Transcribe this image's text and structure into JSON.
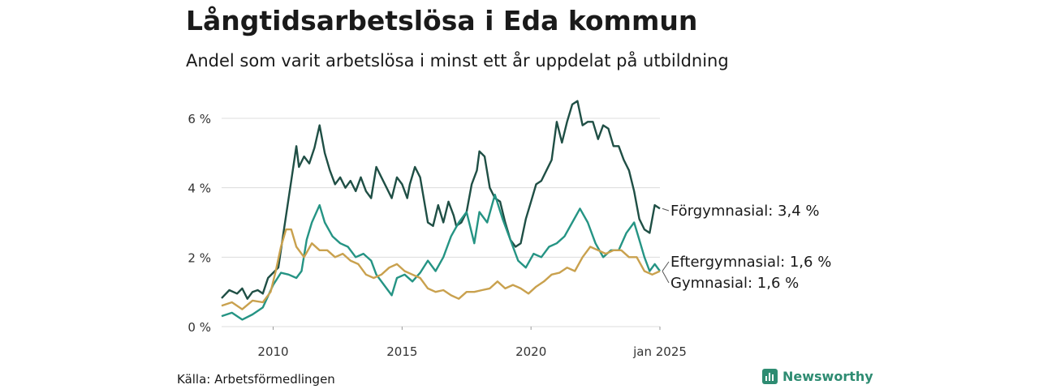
{
  "title": "Långtidsarbetslösa i Eda kommun",
  "subtitle": "Andel som varit arbetslösa i minst ett år uppdelat på utbildning",
  "source": "Källa: Arbetsförmedlingen",
  "brand": {
    "name": "Newsworthy",
    "icon": "newsworthy-logo-icon",
    "color": "#2e8c72"
  },
  "chart_data": {
    "type": "line",
    "title": "Långtidsarbetslösa i Eda kommun",
    "subtitle": "Andel som varit arbetslösa i minst ett år uppdelat på utbildning",
    "xlabel": "",
    "ylabel": "",
    "xlim": [
      2008.0,
      2025.0
    ],
    "ylim": [
      0,
      6.8
    ],
    "grid": true,
    "yticks": [
      {
        "value": 0,
        "label": "0 %"
      },
      {
        "value": 2,
        "label": "2 %"
      },
      {
        "value": 4,
        "label": "4 %"
      },
      {
        "value": 6,
        "label": "6 %"
      }
    ],
    "xticks": [
      {
        "value": 2010,
        "label": "2010"
      },
      {
        "value": 2015,
        "label": "2015"
      },
      {
        "value": 2020,
        "label": "2020"
      },
      {
        "value": 2025,
        "label": "jan 2025"
      }
    ],
    "series": [
      {
        "name": "Förgymnasial",
        "label": "Förgymnasial: 3,4 %",
        "color": "#1f4f45",
        "points": [
          [
            2008.0,
            0.82
          ],
          [
            2008.3,
            1.05
          ],
          [
            2008.6,
            0.95
          ],
          [
            2008.8,
            1.1
          ],
          [
            2009.0,
            0.8
          ],
          [
            2009.2,
            1.0
          ],
          [
            2009.4,
            1.05
          ],
          [
            2009.6,
            0.95
          ],
          [
            2009.8,
            1.4
          ],
          [
            2010.0,
            1.55
          ],
          [
            2010.2,
            1.7
          ],
          [
            2010.4,
            2.7
          ],
          [
            2010.7,
            4.2
          ],
          [
            2010.9,
            5.2
          ],
          [
            2011.0,
            4.6
          ],
          [
            2011.2,
            4.9
          ],
          [
            2011.4,
            4.7
          ],
          [
            2011.6,
            5.15
          ],
          [
            2011.8,
            5.8
          ],
          [
            2012.0,
            5.0
          ],
          [
            2012.2,
            4.5
          ],
          [
            2012.4,
            4.1
          ],
          [
            2012.6,
            4.3
          ],
          [
            2012.8,
            4.0
          ],
          [
            2013.0,
            4.2
          ],
          [
            2013.2,
            3.9
          ],
          [
            2013.4,
            4.3
          ],
          [
            2013.6,
            3.9
          ],
          [
            2013.8,
            3.7
          ],
          [
            2014.0,
            4.6
          ],
          [
            2014.2,
            4.3
          ],
          [
            2014.4,
            4.0
          ],
          [
            2014.6,
            3.7
          ],
          [
            2014.8,
            4.3
          ],
          [
            2015.0,
            4.1
          ],
          [
            2015.2,
            3.7
          ],
          [
            2015.3,
            4.1
          ],
          [
            2015.5,
            4.6
          ],
          [
            2015.7,
            4.3
          ],
          [
            2016.0,
            3.0
          ],
          [
            2016.2,
            2.9
          ],
          [
            2016.4,
            3.5
          ],
          [
            2016.6,
            3.0
          ],
          [
            2016.8,
            3.6
          ],
          [
            2017.0,
            3.2
          ],
          [
            2017.1,
            2.9
          ],
          [
            2017.3,
            3.0
          ],
          [
            2017.5,
            3.3
          ],
          [
            2017.7,
            4.1
          ],
          [
            2017.9,
            4.5
          ],
          [
            2018.0,
            5.05
          ],
          [
            2018.2,
            4.9
          ],
          [
            2018.4,
            4.0
          ],
          [
            2018.6,
            3.7
          ],
          [
            2018.8,
            3.6
          ],
          [
            2019.0,
            3.0
          ],
          [
            2019.2,
            2.5
          ],
          [
            2019.4,
            2.3
          ],
          [
            2019.6,
            2.4
          ],
          [
            2019.8,
            3.1
          ],
          [
            2020.0,
            3.6
          ],
          [
            2020.2,
            4.1
          ],
          [
            2020.4,
            4.2
          ],
          [
            2020.6,
            4.5
          ],
          [
            2020.8,
            4.8
          ],
          [
            2021.0,
            5.9
          ],
          [
            2021.2,
            5.3
          ],
          [
            2021.4,
            5.9
          ],
          [
            2021.6,
            6.4
          ],
          [
            2021.8,
            6.5
          ],
          [
            2022.0,
            5.8
          ],
          [
            2022.2,
            5.9
          ],
          [
            2022.4,
            5.9
          ],
          [
            2022.6,
            5.4
          ],
          [
            2022.8,
            5.8
          ],
          [
            2023.0,
            5.7
          ],
          [
            2023.2,
            5.2
          ],
          [
            2023.4,
            5.2
          ],
          [
            2023.6,
            4.8
          ],
          [
            2023.8,
            4.5
          ],
          [
            2024.0,
            3.9
          ],
          [
            2024.2,
            3.1
          ],
          [
            2024.4,
            2.8
          ],
          [
            2024.6,
            2.7
          ],
          [
            2024.8,
            3.5
          ],
          [
            2025.0,
            3.4
          ]
        ]
      },
      {
        "name": "Eftergymnasial",
        "label": "Eftergymnasial: 1,6 %",
        "color": "#259484",
        "points": [
          [
            2008.0,
            0.3
          ],
          [
            2008.4,
            0.4
          ],
          [
            2008.8,
            0.2
          ],
          [
            2009.2,
            0.35
          ],
          [
            2009.6,
            0.55
          ],
          [
            2010.0,
            1.2
          ],
          [
            2010.3,
            1.55
          ],
          [
            2010.6,
            1.5
          ],
          [
            2010.9,
            1.4
          ],
          [
            2011.1,
            1.6
          ],
          [
            2011.3,
            2.5
          ],
          [
            2011.5,
            3.0
          ],
          [
            2011.8,
            3.5
          ],
          [
            2012.0,
            3.0
          ],
          [
            2012.3,
            2.6
          ],
          [
            2012.6,
            2.4
          ],
          [
            2012.9,
            2.3
          ],
          [
            2013.2,
            2.0
          ],
          [
            2013.5,
            2.1
          ],
          [
            2013.8,
            1.9
          ],
          [
            2014.0,
            1.5
          ],
          [
            2014.3,
            1.2
          ],
          [
            2014.6,
            0.9
          ],
          [
            2014.8,
            1.4
          ],
          [
            2015.1,
            1.5
          ],
          [
            2015.4,
            1.3
          ],
          [
            2015.7,
            1.55
          ],
          [
            2016.0,
            1.9
          ],
          [
            2016.3,
            1.6
          ],
          [
            2016.6,
            2.0
          ],
          [
            2016.9,
            2.6
          ],
          [
            2017.2,
            3.0
          ],
          [
            2017.5,
            3.3
          ],
          [
            2017.8,
            2.4
          ],
          [
            2018.0,
            3.3
          ],
          [
            2018.3,
            3.0
          ],
          [
            2018.6,
            3.8
          ],
          [
            2018.9,
            3.1
          ],
          [
            2019.2,
            2.5
          ],
          [
            2019.5,
            1.9
          ],
          [
            2019.8,
            1.7
          ],
          [
            2020.1,
            2.1
          ],
          [
            2020.4,
            2.0
          ],
          [
            2020.7,
            2.3
          ],
          [
            2021.0,
            2.4
          ],
          [
            2021.3,
            2.6
          ],
          [
            2021.6,
            3.0
          ],
          [
            2021.9,
            3.4
          ],
          [
            2022.2,
            3.0
          ],
          [
            2022.5,
            2.4
          ],
          [
            2022.8,
            2.0
          ],
          [
            2023.1,
            2.2
          ],
          [
            2023.4,
            2.2
          ],
          [
            2023.7,
            2.7
          ],
          [
            2024.0,
            3.0
          ],
          [
            2024.2,
            2.5
          ],
          [
            2024.4,
            2.0
          ],
          [
            2024.6,
            1.6
          ],
          [
            2024.8,
            1.8
          ],
          [
            2025.0,
            1.6
          ]
        ]
      },
      {
        "name": "Gymnasial",
        "label": "Gymnasial: 1,6 %",
        "color": "#c9a14e",
        "points": [
          [
            2008.0,
            0.6
          ],
          [
            2008.4,
            0.7
          ],
          [
            2008.8,
            0.5
          ],
          [
            2009.2,
            0.75
          ],
          [
            2009.6,
            0.7
          ],
          [
            2009.9,
            1.0
          ],
          [
            2010.1,
            1.6
          ],
          [
            2010.3,
            2.3
          ],
          [
            2010.5,
            2.8
          ],
          [
            2010.7,
            2.8
          ],
          [
            2010.9,
            2.3
          ],
          [
            2011.2,
            2.0
          ],
          [
            2011.5,
            2.4
          ],
          [
            2011.8,
            2.2
          ],
          [
            2012.1,
            2.2
          ],
          [
            2012.4,
            2.0
          ],
          [
            2012.7,
            2.1
          ],
          [
            2013.0,
            1.9
          ],
          [
            2013.3,
            1.8
          ],
          [
            2013.6,
            1.5
          ],
          [
            2013.9,
            1.4
          ],
          [
            2014.2,
            1.5
          ],
          [
            2014.5,
            1.7
          ],
          [
            2014.8,
            1.8
          ],
          [
            2015.1,
            1.6
          ],
          [
            2015.4,
            1.5
          ],
          [
            2015.7,
            1.4
          ],
          [
            2016.0,
            1.1
          ],
          [
            2016.3,
            1.0
          ],
          [
            2016.6,
            1.05
          ],
          [
            2016.9,
            0.9
          ],
          [
            2017.2,
            0.8
          ],
          [
            2017.5,
            1.0
          ],
          [
            2017.8,
            1.0
          ],
          [
            2018.1,
            1.05
          ],
          [
            2018.4,
            1.1
          ],
          [
            2018.7,
            1.3
          ],
          [
            2019.0,
            1.1
          ],
          [
            2019.3,
            1.2
          ],
          [
            2019.6,
            1.1
          ],
          [
            2019.9,
            0.95
          ],
          [
            2020.2,
            1.15
          ],
          [
            2020.5,
            1.3
          ],
          [
            2020.8,
            1.5
          ],
          [
            2021.1,
            1.55
          ],
          [
            2021.4,
            1.7
          ],
          [
            2021.7,
            1.6
          ],
          [
            2022.0,
            2.0
          ],
          [
            2022.3,
            2.3
          ],
          [
            2022.6,
            2.2
          ],
          [
            2022.9,
            2.1
          ],
          [
            2023.2,
            2.2
          ],
          [
            2023.5,
            2.2
          ],
          [
            2023.8,
            2.0
          ],
          [
            2024.1,
            2.0
          ],
          [
            2024.4,
            1.6
          ],
          [
            2024.7,
            1.5
          ],
          [
            2025.0,
            1.6
          ]
        ]
      }
    ]
  }
}
